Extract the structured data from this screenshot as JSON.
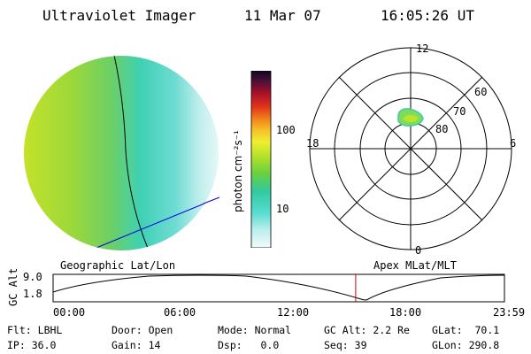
{
  "header": {
    "instrument": "Ultraviolet Imager",
    "date": "11 Mar 07",
    "time": "16:05:26 UT"
  },
  "colorbar": {
    "unit": "photon cm⁻²s⁻¹",
    "ticks": [
      "100",
      "10"
    ]
  },
  "captions": {
    "left": "Geographic Lat/Lon",
    "right": "Apex MLat/MLT"
  },
  "polar": {
    "mlt_labels": {
      "top": "12",
      "left": "18",
      "right": "6",
      "bottom": "0"
    },
    "lat_labels": [
      "60",
      "70",
      "80"
    ]
  },
  "timeline": {
    "ylabel": "GC Alt",
    "yticks": [
      "9.0",
      "1.8"
    ],
    "xticks": [
      "00:00",
      "06:00",
      "12:00",
      "18:00",
      "23:59"
    ],
    "current_time_fraction": 0.6704
  },
  "status": {
    "filter": {
      "label": "Flt:",
      "value": "LBHL"
    },
    "ip": {
      "label": "IP:",
      "value": "36.0"
    },
    "door": {
      "label": "Door:",
      "value": "Open"
    },
    "gain": {
      "label": "Gain:",
      "value": "14"
    },
    "mode": {
      "label": "Mode:",
      "value": "Normal"
    },
    "dsp": {
      "label": "Dsp:",
      "value": "0.0"
    },
    "gcalt": {
      "label": "GC Alt:",
      "value": "2.2 Re"
    },
    "seq": {
      "label": "Seq:",
      "value": "39"
    },
    "glat": {
      "label": "GLat:",
      "value": "70.1"
    },
    "glon": {
      "label": "GLon:",
      "value": "290.8"
    }
  }
}
